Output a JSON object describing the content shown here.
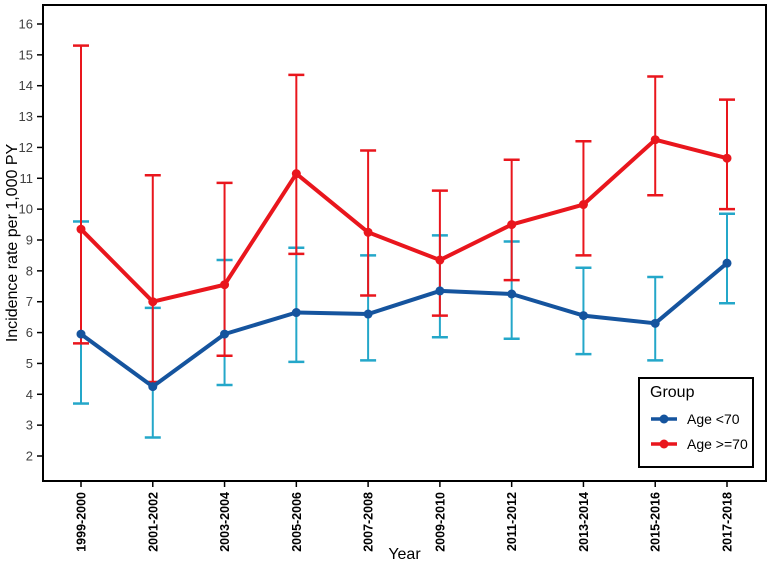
{
  "chart_data": {
    "type": "line",
    "title": "",
    "xlabel": "Year",
    "ylabel": "Incidence rate per 1,000 PY",
    "categories": [
      "1999-2000",
      "2001-2002",
      "2003-2004",
      "2005-2006",
      "2007-2008",
      "2009-2010",
      "2011-2012",
      "2013-2014",
      "2015-2016",
      "2017-2018"
    ],
    "x_tick_rotation": 90,
    "yticks": [
      2,
      3,
      4,
      5,
      6,
      7,
      8,
      9,
      10,
      11,
      12,
      13,
      14,
      15,
      16
    ],
    "ylim": [
      1.2,
      16.6
    ],
    "grid": false,
    "point_marker": "circle",
    "error_bars": true,
    "panel_border_color": "#000000",
    "background_color": "#ffffff",
    "legend": {
      "title": "Group",
      "position": "inside-bottom-right"
    },
    "series": [
      {
        "name": "Age <70",
        "line_color": "#15549E",
        "errorbar_color": "#24A7C9",
        "values": [
          5.95,
          4.25,
          5.95,
          6.65,
          6.6,
          7.35,
          7.25,
          6.55,
          6.3,
          8.25
        ],
        "ci_low": [
          3.7,
          2.6,
          4.3,
          5.05,
          5.1,
          5.85,
          5.8,
          5.3,
          5.1,
          6.95
        ],
        "ci_high": [
          9.6,
          6.8,
          8.35,
          8.75,
          8.5,
          9.15,
          8.95,
          8.1,
          7.8,
          9.85
        ]
      },
      {
        "name": "Age >=70",
        "line_color": "#E9161D",
        "errorbar_color": "#E9161D",
        "values": [
          9.35,
          7.0,
          7.55,
          11.15,
          9.25,
          8.35,
          9.5,
          10.15,
          12.25,
          11.65
        ],
        "ci_low": [
          5.65,
          4.4,
          5.25,
          8.55,
          7.2,
          6.55,
          7.7,
          8.5,
          10.45,
          10.0
        ],
        "ci_high": [
          15.3,
          11.1,
          10.85,
          14.35,
          11.9,
          10.6,
          11.6,
          12.2,
          14.3,
          13.55
        ]
      }
    ]
  }
}
